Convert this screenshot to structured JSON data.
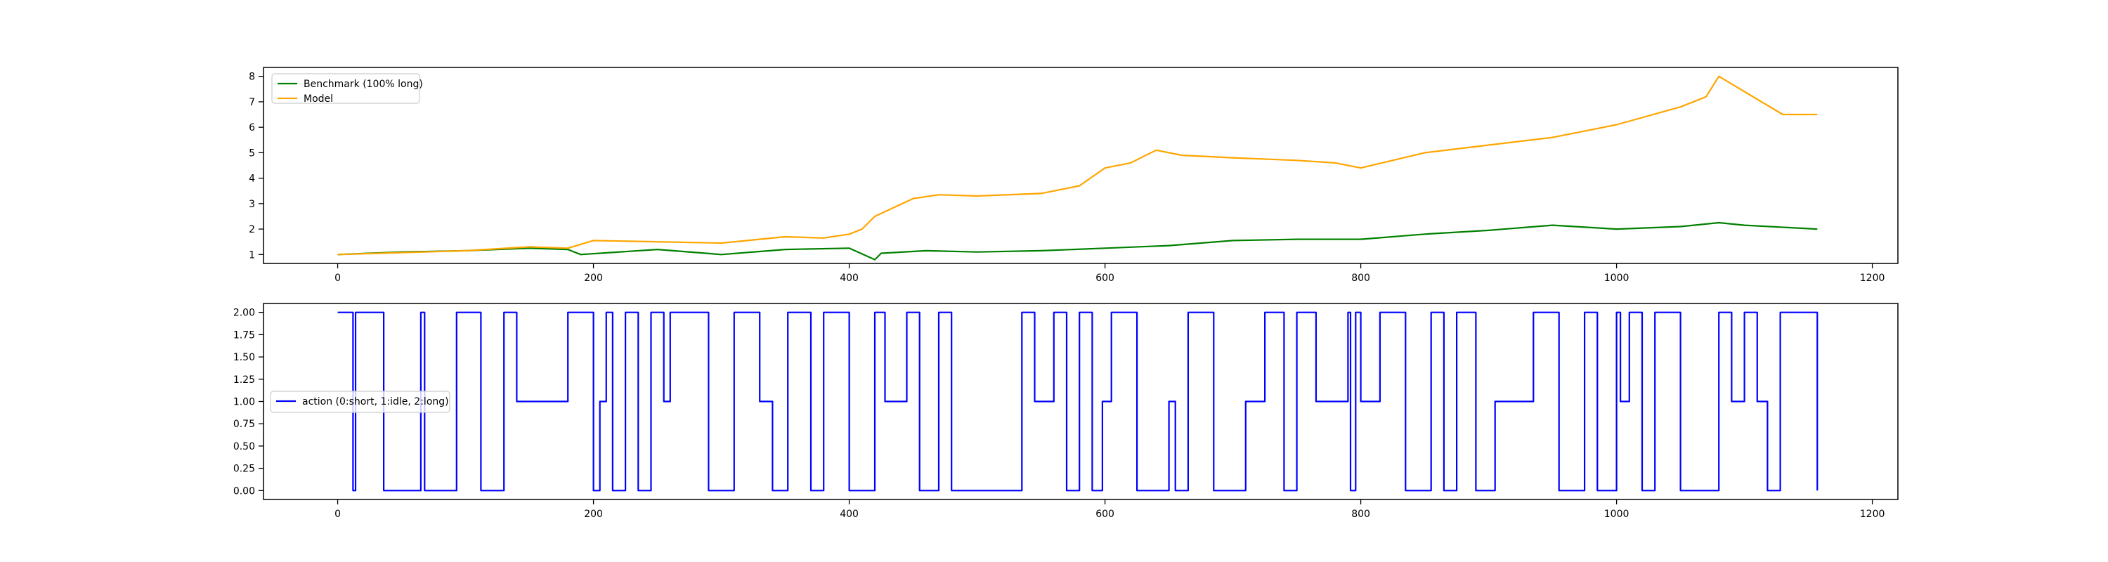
{
  "chart_data": [
    {
      "type": "line",
      "title": "",
      "xlabel": "",
      "ylabel": "",
      "xlim": [
        -58,
        1220
      ],
      "ylim": [
        0.65,
        8.35
      ],
      "grid": false,
      "legend_location": "upper-left",
      "x_ticks": [
        0,
        200,
        400,
        600,
        800,
        1000,
        1200
      ],
      "x_tick_labels": [
        "0",
        "200",
        "400",
        "600",
        "800",
        "1000",
        "1200"
      ],
      "y_ticks": [
        1,
        2,
        3,
        4,
        5,
        6,
        7,
        8
      ],
      "y_tick_labels": [
        "1",
        "2",
        "3",
        "4",
        "5",
        "6",
        "7",
        "8"
      ],
      "series": [
        {
          "name": "Benchmark (100% long)",
          "color": "#008000",
          "x": [
            0,
            50,
            100,
            150,
            180,
            190,
            250,
            300,
            350,
            400,
            420,
            425,
            460,
            500,
            550,
            600,
            650,
            700,
            750,
            800,
            850,
            900,
            950,
            1000,
            1050,
            1080,
            1100,
            1157
          ],
          "y": [
            1.0,
            1.1,
            1.15,
            1.25,
            1.2,
            1.0,
            1.2,
            1.0,
            1.2,
            1.25,
            0.8,
            1.05,
            1.15,
            1.1,
            1.15,
            1.25,
            1.35,
            1.55,
            1.6,
            1.6,
            1.8,
            1.95,
            2.15,
            2.0,
            2.1,
            2.25,
            2.15,
            2.0
          ]
        },
        {
          "name": "Model",
          "color": "#ffa500",
          "x": [
            0,
            100,
            150,
            180,
            200,
            300,
            350,
            380,
            400,
            410,
            420,
            450,
            470,
            500,
            550,
            580,
            600,
            620,
            640,
            660,
            700,
            750,
            780,
            800,
            850,
            900,
            950,
            1000,
            1050,
            1070,
            1080,
            1100,
            1130,
            1157
          ],
          "y": [
            1.0,
            1.15,
            1.3,
            1.25,
            1.55,
            1.45,
            1.7,
            1.65,
            1.8,
            2.0,
            2.5,
            3.2,
            3.35,
            3.3,
            3.4,
            3.7,
            4.4,
            4.6,
            5.1,
            4.9,
            4.8,
            4.7,
            4.6,
            4.4,
            5.0,
            5.3,
            5.6,
            6.1,
            6.8,
            7.2,
            8.0,
            7.4,
            6.5,
            6.5
          ]
        }
      ]
    },
    {
      "type": "line",
      "title": "",
      "xlabel": "",
      "ylabel": "",
      "xlim": [
        -58,
        1220
      ],
      "ylim": [
        -0.1,
        2.1
      ],
      "grid": false,
      "legend_location": "center-left",
      "x_ticks": [
        0,
        200,
        400,
        600,
        800,
        1000,
        1200
      ],
      "x_tick_labels": [
        "0",
        "200",
        "400",
        "600",
        "800",
        "1000",
        "1200"
      ],
      "y_ticks": [
        0,
        0.25,
        0.5,
        0.75,
        1.0,
        1.25,
        1.5,
        1.75,
        2.0
      ],
      "y_tick_labels": [
        "0.00",
        "0.25",
        "0.50",
        "0.75",
        "1.00",
        "1.25",
        "1.50",
        "1.75",
        "2.00"
      ],
      "series": [
        {
          "name": "action (0:short, 1:idle, 2:long)",
          "color": "#0000ff",
          "x": [
            0,
            9,
            12,
            14,
            30,
            36,
            65,
            68,
            93,
            112,
            130,
            140,
            180,
            185,
            200,
            205,
            210,
            215,
            225,
            235,
            245,
            255,
            260,
            290,
            310,
            330,
            340,
            352,
            370,
            380,
            400,
            420,
            428,
            445,
            455,
            470,
            480,
            535,
            545,
            560,
            570,
            580,
            590,
            598,
            605,
            625,
            650,
            655,
            665,
            685,
            710,
            725,
            740,
            750,
            765,
            790,
            792,
            796,
            800,
            815,
            835,
            855,
            865,
            875,
            890,
            905,
            935,
            955,
            975,
            985,
            1000,
            1003,
            1010,
            1020,
            1030,
            1050,
            1080,
            1090,
            1100,
            1110,
            1118,
            1128,
            1157
          ],
          "y": [
            2,
            2,
            0,
            2,
            2,
            0,
            2,
            0,
            2,
            0,
            2,
            1,
            2,
            2,
            0,
            1,
            2,
            0,
            2,
            0,
            2,
            1,
            2,
            0,
            2,
            1,
            0,
            2,
            0,
            2,
            0,
            2,
            1,
            2,
            0,
            2,
            0,
            2,
            1,
            2,
            0,
            2,
            0,
            1,
            2,
            0,
            1,
            0,
            2,
            0,
            1,
            2,
            0,
            2,
            1,
            2,
            0,
            2,
            1,
            2,
            0,
            2,
            0,
            2,
            0,
            1,
            2,
            0,
            2,
            0,
            2,
            1,
            2,
            0,
            2,
            0,
            2,
            1,
            2,
            1,
            0,
            2,
            0
          ]
        }
      ]
    }
  ]
}
